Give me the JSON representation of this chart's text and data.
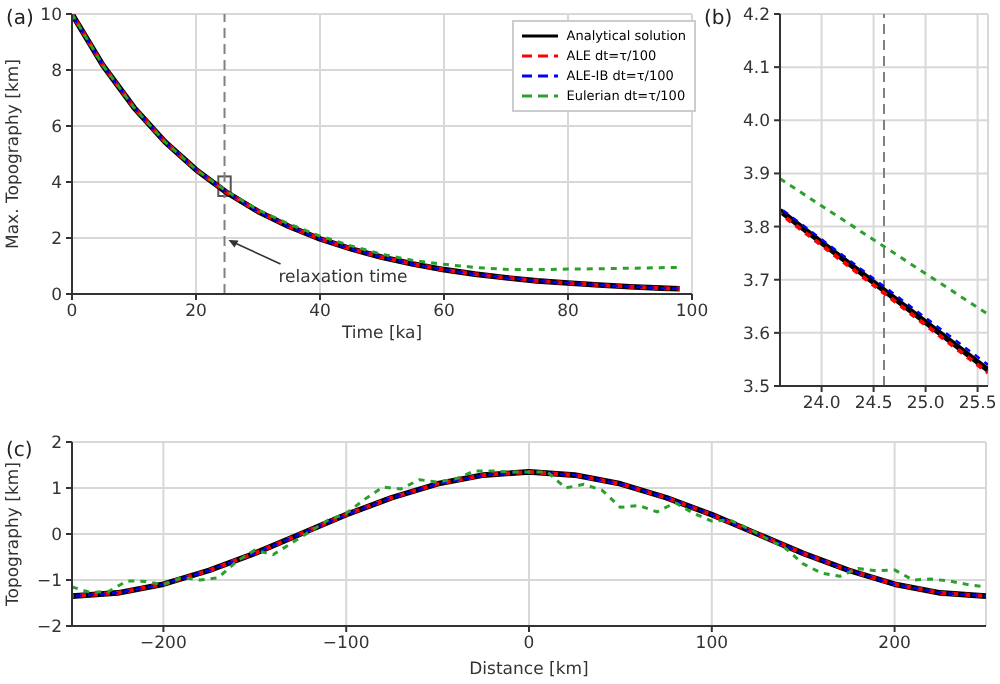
{
  "chart_data": [
    {
      "type": "line",
      "title": null,
      "annotations": [
        "(a)",
        {
          "text": "relaxation time",
          "x": 24.6,
          "y": 2
        }
      ],
      "xlabel": "Time [ka]",
      "ylabel": "Max. Topography [km]",
      "x": [
        0,
        5,
        10,
        15,
        20,
        25,
        30,
        35,
        40,
        45,
        50,
        55,
        60,
        65,
        70,
        75,
        80,
        85,
        90,
        95,
        98
      ],
      "series": [
        {
          "name": "Analytical solution",
          "color": "#000000",
          "line_style": "solid",
          "values": [
            10,
            8.16,
            6.66,
            5.43,
            4.44,
            3.62,
            2.95,
            2.41,
            1.97,
            1.61,
            1.31,
            1.07,
            0.87,
            0.71,
            0.58,
            0.47,
            0.39,
            0.32,
            0.26,
            0.21,
            0.19
          ]
        },
        {
          "name": "ALE dt=τ/100",
          "color": "#ff0000",
          "line_style": "dashed",
          "values": [
            10,
            8.16,
            6.66,
            5.43,
            4.44,
            3.62,
            2.95,
            2.41,
            1.97,
            1.61,
            1.31,
            1.07,
            0.87,
            0.71,
            0.58,
            0.47,
            0.39,
            0.32,
            0.26,
            0.21,
            0.19
          ]
        },
        {
          "name": "ALE-IB dt=τ/100",
          "color": "#0000ff",
          "line_style": "dashed",
          "values": [
            10,
            8.16,
            6.66,
            5.43,
            4.44,
            3.62,
            2.95,
            2.41,
            1.97,
            1.61,
            1.31,
            1.07,
            0.87,
            0.71,
            0.58,
            0.47,
            0.39,
            0.32,
            0.26,
            0.21,
            0.19
          ]
        },
        {
          "name": "Eulerian dt=τ/100",
          "color": "#2ca02c",
          "line_style": "dashed",
          "values": [
            10,
            8.16,
            6.66,
            5.43,
            4.44,
            3.66,
            3.0,
            2.5,
            2.07,
            1.72,
            1.42,
            1.2,
            1.06,
            0.95,
            0.88,
            0.87,
            0.89,
            0.9,
            0.92,
            0.94,
            0.95
          ]
        }
      ],
      "xlim": [
        0,
        100
      ],
      "xticks": [
        0,
        20,
        40,
        60,
        80,
        100
      ],
      "ylim": [
        0,
        10
      ],
      "yticks": [
        0,
        2,
        4,
        6,
        8,
        10
      ],
      "grid": true,
      "legend": "top right",
      "ref_lines": [
        {
          "axis": "x",
          "value": 24.6,
          "color": "#808080",
          "line_style": "dashed"
        }
      ]
    },
    {
      "type": "line",
      "annotations": [
        "(b)"
      ],
      "x": [
        23.6,
        25.6
      ],
      "series": [
        {
          "color": "#000000",
          "line_style": "solid",
          "values": [
            3.83,
            3.53
          ]
        },
        {
          "color": "#ff0000",
          "line_style": "dashed",
          "values": [
            3.825,
            3.525
          ]
        },
        {
          "color": "#0000ff",
          "line_style": "dashed",
          "values": [
            3.835,
            3.54
          ]
        },
        {
          "color": "#2ca02c",
          "line_style": "dashed",
          "values": [
            3.89,
            3.635
          ]
        }
      ],
      "xlim": [
        23.6,
        25.6
      ],
      "xticks": [
        {
          "value": 24,
          "label": "24.0"
        },
        24.5,
        {
          "value": 25,
          "label": "25.0"
        },
        25.5
      ],
      "ylim": [
        3.5,
        4.2
      ],
      "yticks": [
        3.5,
        3.6,
        3.7,
        3.8,
        3.9,
        {
          "value": 4,
          "label": "4.0"
        },
        4.1,
        4.2
      ],
      "grid": true,
      "ref_lines": [
        {
          "axis": "x",
          "value": 24.6,
          "color": "#808080",
          "line_style": "dashed"
        }
      ]
    },
    {
      "type": "line",
      "annotations": [
        "(c)"
      ],
      "xlabel": "Distance [km]",
      "ylabel": "Topography [km]",
      "series": [
        {
          "color": "#000000",
          "line_style": "solid",
          "x": [
            -250,
            -225,
            -200,
            -175,
            -150,
            -125,
            -100,
            -75,
            -50,
            -25,
            0,
            25,
            50,
            75,
            100,
            125,
            150,
            175,
            200,
            225,
            250
          ],
          "values": [
            -1.35,
            -1.28,
            -1.09,
            -0.79,
            -0.42,
            0,
            0.42,
            0.79,
            1.09,
            1.28,
            1.35,
            1.28,
            1.09,
            0.79,
            0.42,
            0,
            -0.42,
            -0.79,
            -1.09,
            -1.28,
            -1.35
          ]
        },
        {
          "color": "#ff0000",
          "line_style": "dashed",
          "x": [
            -250,
            -225,
            -200,
            -175,
            -150,
            -125,
            -100,
            -75,
            -50,
            -25,
            0,
            25,
            50,
            75,
            100,
            125,
            150,
            175,
            200,
            225,
            250
          ],
          "values": [
            -1.35,
            -1.28,
            -1.09,
            -0.79,
            -0.42,
            0,
            0.42,
            0.79,
            1.09,
            1.28,
            1.35,
            1.28,
            1.09,
            0.79,
            0.42,
            0,
            -0.42,
            -0.79,
            -1.09,
            -1.28,
            -1.35
          ]
        },
        {
          "color": "#0000ff",
          "line_style": "dashed",
          "x": [
            -250,
            -225,
            -200,
            -175,
            -150,
            -125,
            -100,
            -75,
            -50,
            -25,
            0,
            25,
            50,
            75,
            100,
            125,
            150,
            175,
            200,
            225,
            250
          ],
          "values": [
            -1.35,
            -1.28,
            -1.09,
            -0.79,
            -0.42,
            0,
            0.42,
            0.79,
            1.09,
            1.28,
            1.35,
            1.28,
            1.09,
            0.79,
            0.42,
            0,
            -0.42,
            -0.79,
            -1.09,
            -1.28,
            -1.35
          ]
        },
        {
          "color": "#2ca02c",
          "line_style": "dashed",
          "x": [
            -250,
            -240,
            -230,
            -220,
            -210,
            -200,
            -190,
            -180,
            -170,
            -160,
            -150,
            -140,
            -130,
            -120,
            -110,
            -100,
            -90,
            -80,
            -70,
            -60,
            -50,
            -40,
            -30,
            -20,
            -10,
            0,
            10,
            20,
            30,
            40,
            50,
            60,
            70,
            80,
            90,
            100,
            110,
            120,
            130,
            140,
            150,
            160,
            170,
            180,
            190,
            200,
            210,
            220,
            230,
            240,
            250
          ],
          "values": [
            -1.15,
            -1.27,
            -1.25,
            -1.02,
            -1.03,
            -1.1,
            -0.95,
            -1.0,
            -0.95,
            -0.6,
            -0.35,
            -0.45,
            -0.2,
            0.05,
            0.3,
            0.45,
            0.75,
            1.02,
            0.98,
            1.18,
            1.13,
            1.2,
            1.37,
            1.37,
            1.35,
            1.35,
            1.35,
            1.0,
            1.08,
            0.95,
            0.58,
            0.62,
            0.48,
            0.68,
            0.45,
            0.28,
            0.3,
            0.12,
            -0.1,
            -0.3,
            -0.65,
            -0.85,
            -0.92,
            -0.75,
            -0.8,
            -0.78,
            -1.0,
            -0.98,
            -1.02,
            -1.1,
            -1.15
          ]
        }
      ],
      "xlim": [
        -250,
        250
      ],
      "xticks": [
        {
          "value": -200,
          "label": "−200"
        },
        {
          "value": -100,
          "label": "−100"
        },
        0,
        100,
        200
      ],
      "ylim": [
        -2,
        2
      ],
      "yticks": [
        {
          "value": -2,
          "label": "−2"
        },
        {
          "value": -1,
          "label": "−1"
        },
        0,
        1,
        2
      ],
      "grid": true
    }
  ]
}
